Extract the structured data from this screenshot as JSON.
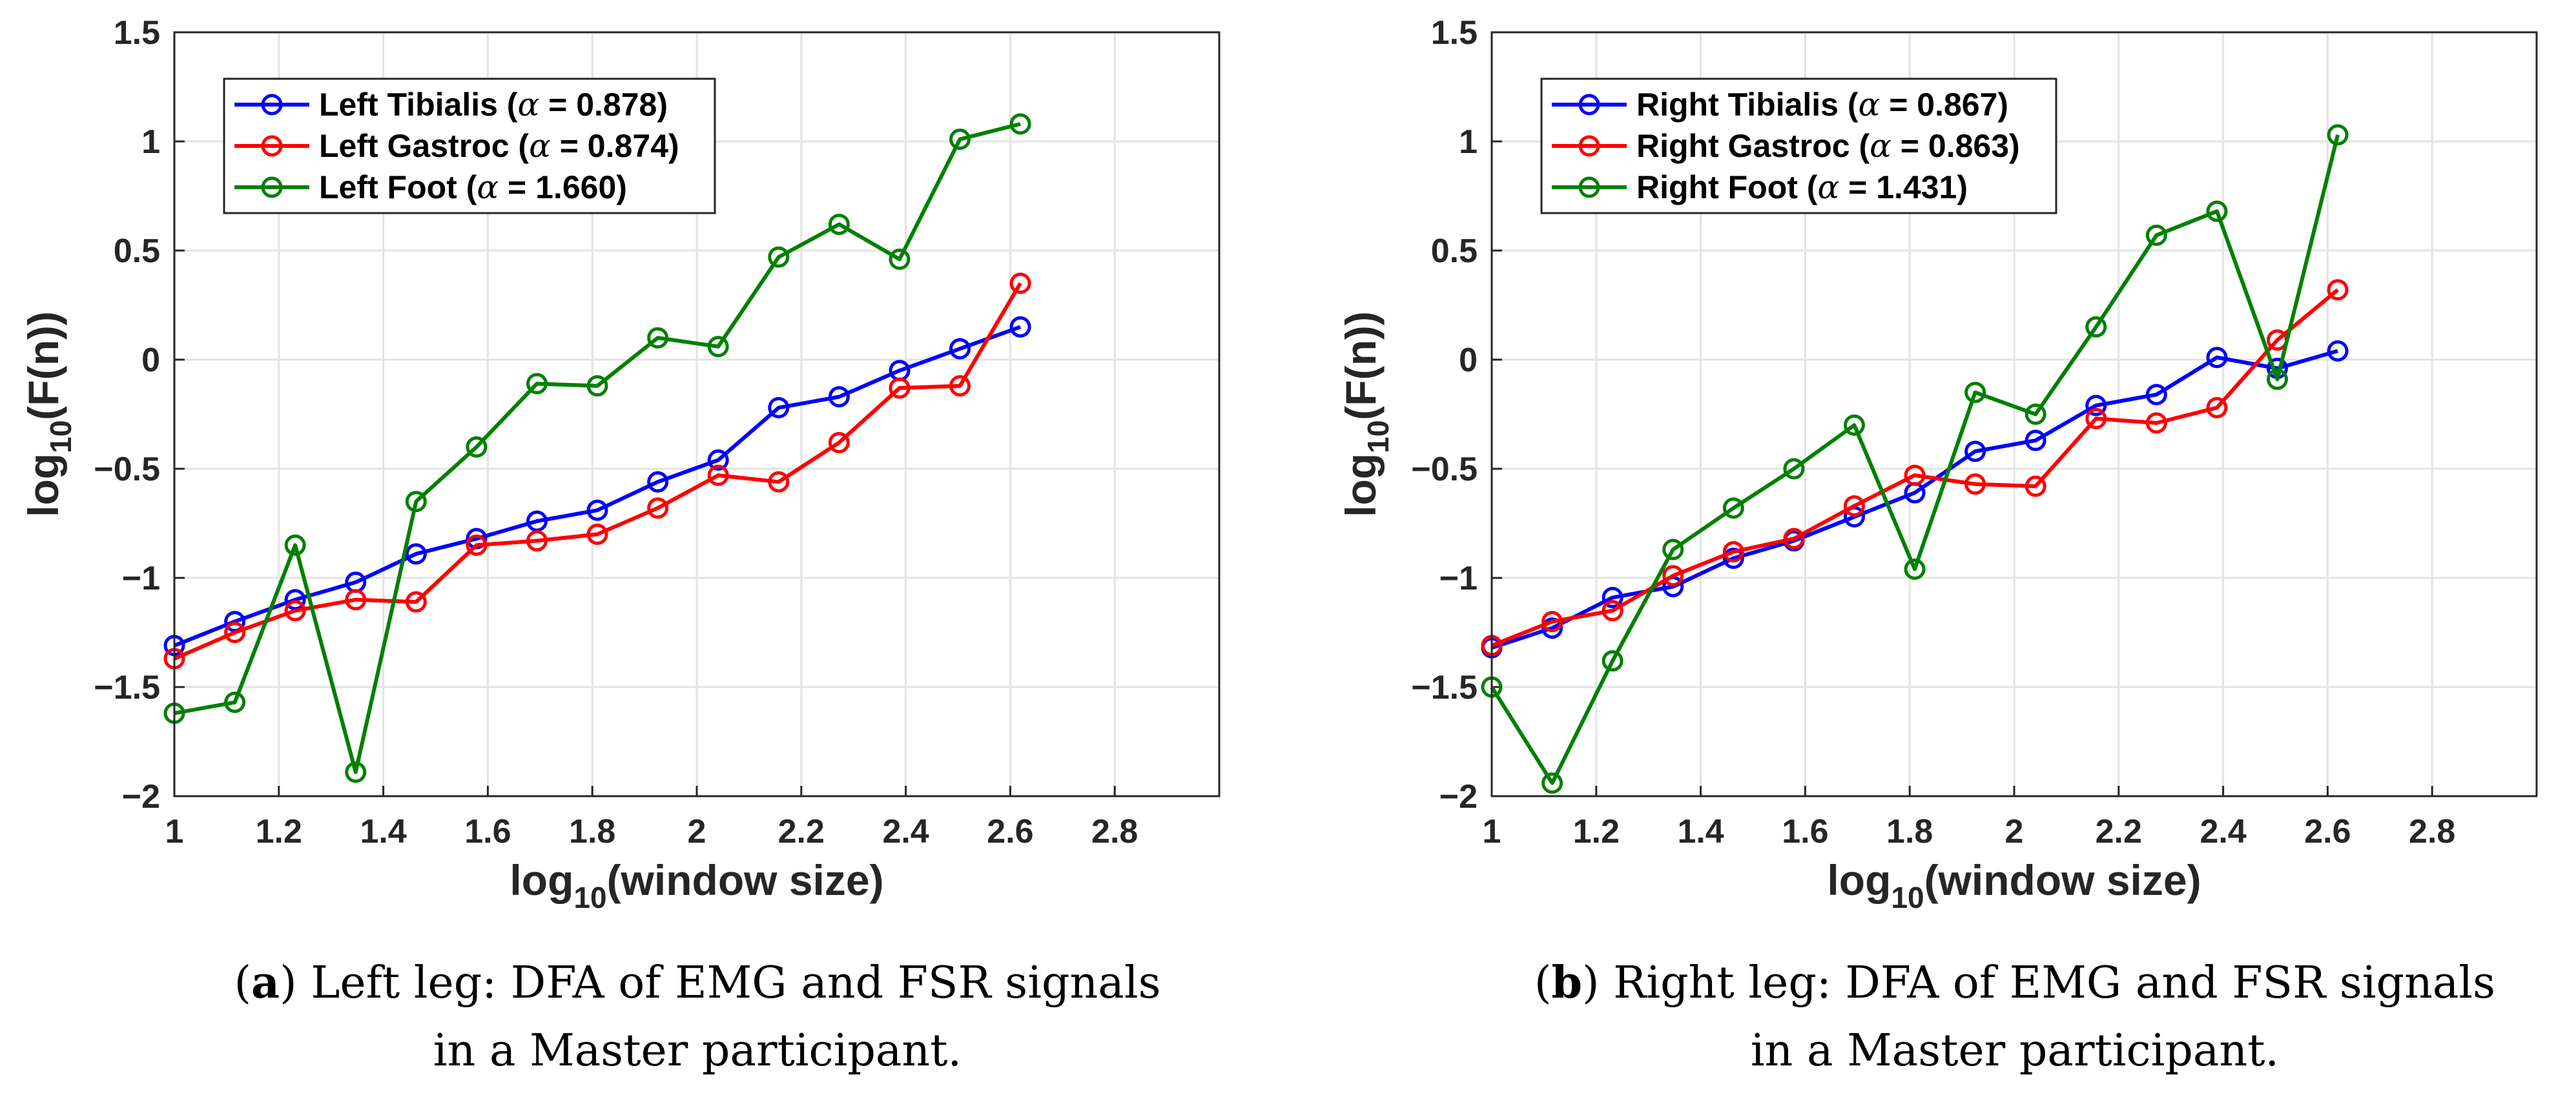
{
  "colors": {
    "blue": "#0000ff",
    "red": "#ff0000",
    "green": "#008000"
  },
  "chart_data": [
    {
      "type": "line",
      "panel": "a",
      "xlabel_main": "log",
      "xlabel_sub": "10",
      "xlabel_rest": "(window size)",
      "ylabel_main": "log",
      "ylabel_sub": "10",
      "ylabel_rest": "(F(n))",
      "xlim": [
        1,
        3
      ],
      "ylim": [
        -2,
        1.5
      ],
      "xticks": [
        "1",
        "1.2",
        "1.4",
        "1.6",
        "1.8",
        "2",
        "2.2",
        "2.4",
        "2.6",
        "2.8"
      ],
      "yticks": [
        "1.5",
        "1",
        "0.5",
        "0",
        "−0.5",
        "−1",
        "−1.5",
        "−2"
      ],
      "grid": true,
      "legend_position": "top-left",
      "x": [
        1.0,
        1.1157,
        1.2313,
        1.347,
        1.4627,
        1.5784,
        1.694,
        1.8097,
        1.9254,
        2.041,
        2.1567,
        2.2724,
        2.3881,
        2.5037,
        2.6194
      ],
      "series": [
        {
          "name_prefix": "Left Tibialis (",
          "alpha_symbol": "α",
          "name_suffix": " = 0.878)",
          "color": "#0000ff",
          "values": [
            -1.31,
            -1.2,
            -1.1,
            -1.02,
            -0.89,
            -0.82,
            -0.74,
            -0.69,
            -0.56,
            -0.46,
            -0.22,
            -0.17,
            -0.05,
            0.05,
            0.15
          ]
        },
        {
          "name_prefix": "Left Gastroc (",
          "alpha_symbol": "α",
          "name_suffix": " = 0.874)",
          "color": "#ff0000",
          "values": [
            -1.37,
            -1.25,
            -1.15,
            -1.1,
            -1.11,
            -0.85,
            -0.83,
            -0.8,
            -0.68,
            -0.53,
            -0.56,
            -0.38,
            -0.13,
            -0.12,
            0.35
          ]
        },
        {
          "name_prefix": "Left Foot (",
          "alpha_symbol": "α",
          "name_suffix": " = 1.660)",
          "color": "#008000",
          "values": [
            -1.62,
            -1.57,
            -0.85,
            -1.89,
            -0.65,
            -0.4,
            -0.11,
            -0.12,
            0.1,
            0.06,
            0.47,
            0.62,
            0.46,
            1.01,
            1.08
          ]
        }
      ],
      "caption_label": "a",
      "caption_line1": " Left leg: DFA of EMG and FSR signals",
      "caption_line2": "in a Master participant."
    },
    {
      "type": "line",
      "panel": "b",
      "xlabel_main": "log",
      "xlabel_sub": "10",
      "xlabel_rest": "(window size)",
      "ylabel_main": "log",
      "ylabel_sub": "10",
      "ylabel_rest": "(F(n))",
      "xlim": [
        1,
        3
      ],
      "ylim": [
        -2,
        1.5
      ],
      "xticks": [
        "1",
        "1.2",
        "1.4",
        "1.6",
        "1.8",
        "2",
        "2.2",
        "2.4",
        "2.6",
        "2.8"
      ],
      "yticks": [
        "1.5",
        "1",
        "0.5",
        "0",
        "−0.5",
        "−1",
        "−1.5",
        "−2"
      ],
      "grid": true,
      "legend_position": "top-left",
      "x": [
        1.0,
        1.1157,
        1.2313,
        1.347,
        1.4627,
        1.5784,
        1.694,
        1.8097,
        1.9254,
        2.041,
        2.1567,
        2.2724,
        2.3881,
        2.5037,
        2.6194
      ],
      "series": [
        {
          "name_prefix": "Right Tibialis (",
          "alpha_symbol": "α",
          "name_suffix": " = 0.867)",
          "color": "#0000ff",
          "values": [
            -1.32,
            -1.23,
            -1.09,
            -1.04,
            -0.91,
            -0.83,
            -0.72,
            -0.61,
            -0.42,
            -0.37,
            -0.21,
            -0.16,
            0.01,
            -0.04,
            0.04
          ]
        },
        {
          "name_prefix": "Right Gastroc (",
          "alpha_symbol": "α",
          "name_suffix": " = 0.863)",
          "color": "#ff0000",
          "values": [
            -1.31,
            -1.2,
            -1.15,
            -0.99,
            -0.88,
            -0.82,
            -0.67,
            -0.53,
            -0.57,
            -0.58,
            -0.27,
            -0.29,
            -0.22,
            0.09,
            0.32
          ]
        },
        {
          "name_prefix": "Right Foot (",
          "alpha_symbol": "α",
          "name_suffix": " = 1.431)",
          "color": "#008000",
          "values": [
            -1.5,
            -1.94,
            -1.38,
            -0.87,
            -0.68,
            -0.5,
            -0.3,
            -0.96,
            -0.15,
            -0.25,
            0.15,
            0.57,
            0.68,
            -0.09,
            1.03
          ]
        }
      ],
      "caption_label": "b",
      "caption_line1": " Right leg: DFA of EMG and FSR signals",
      "caption_line2": "in a Master participant."
    }
  ]
}
